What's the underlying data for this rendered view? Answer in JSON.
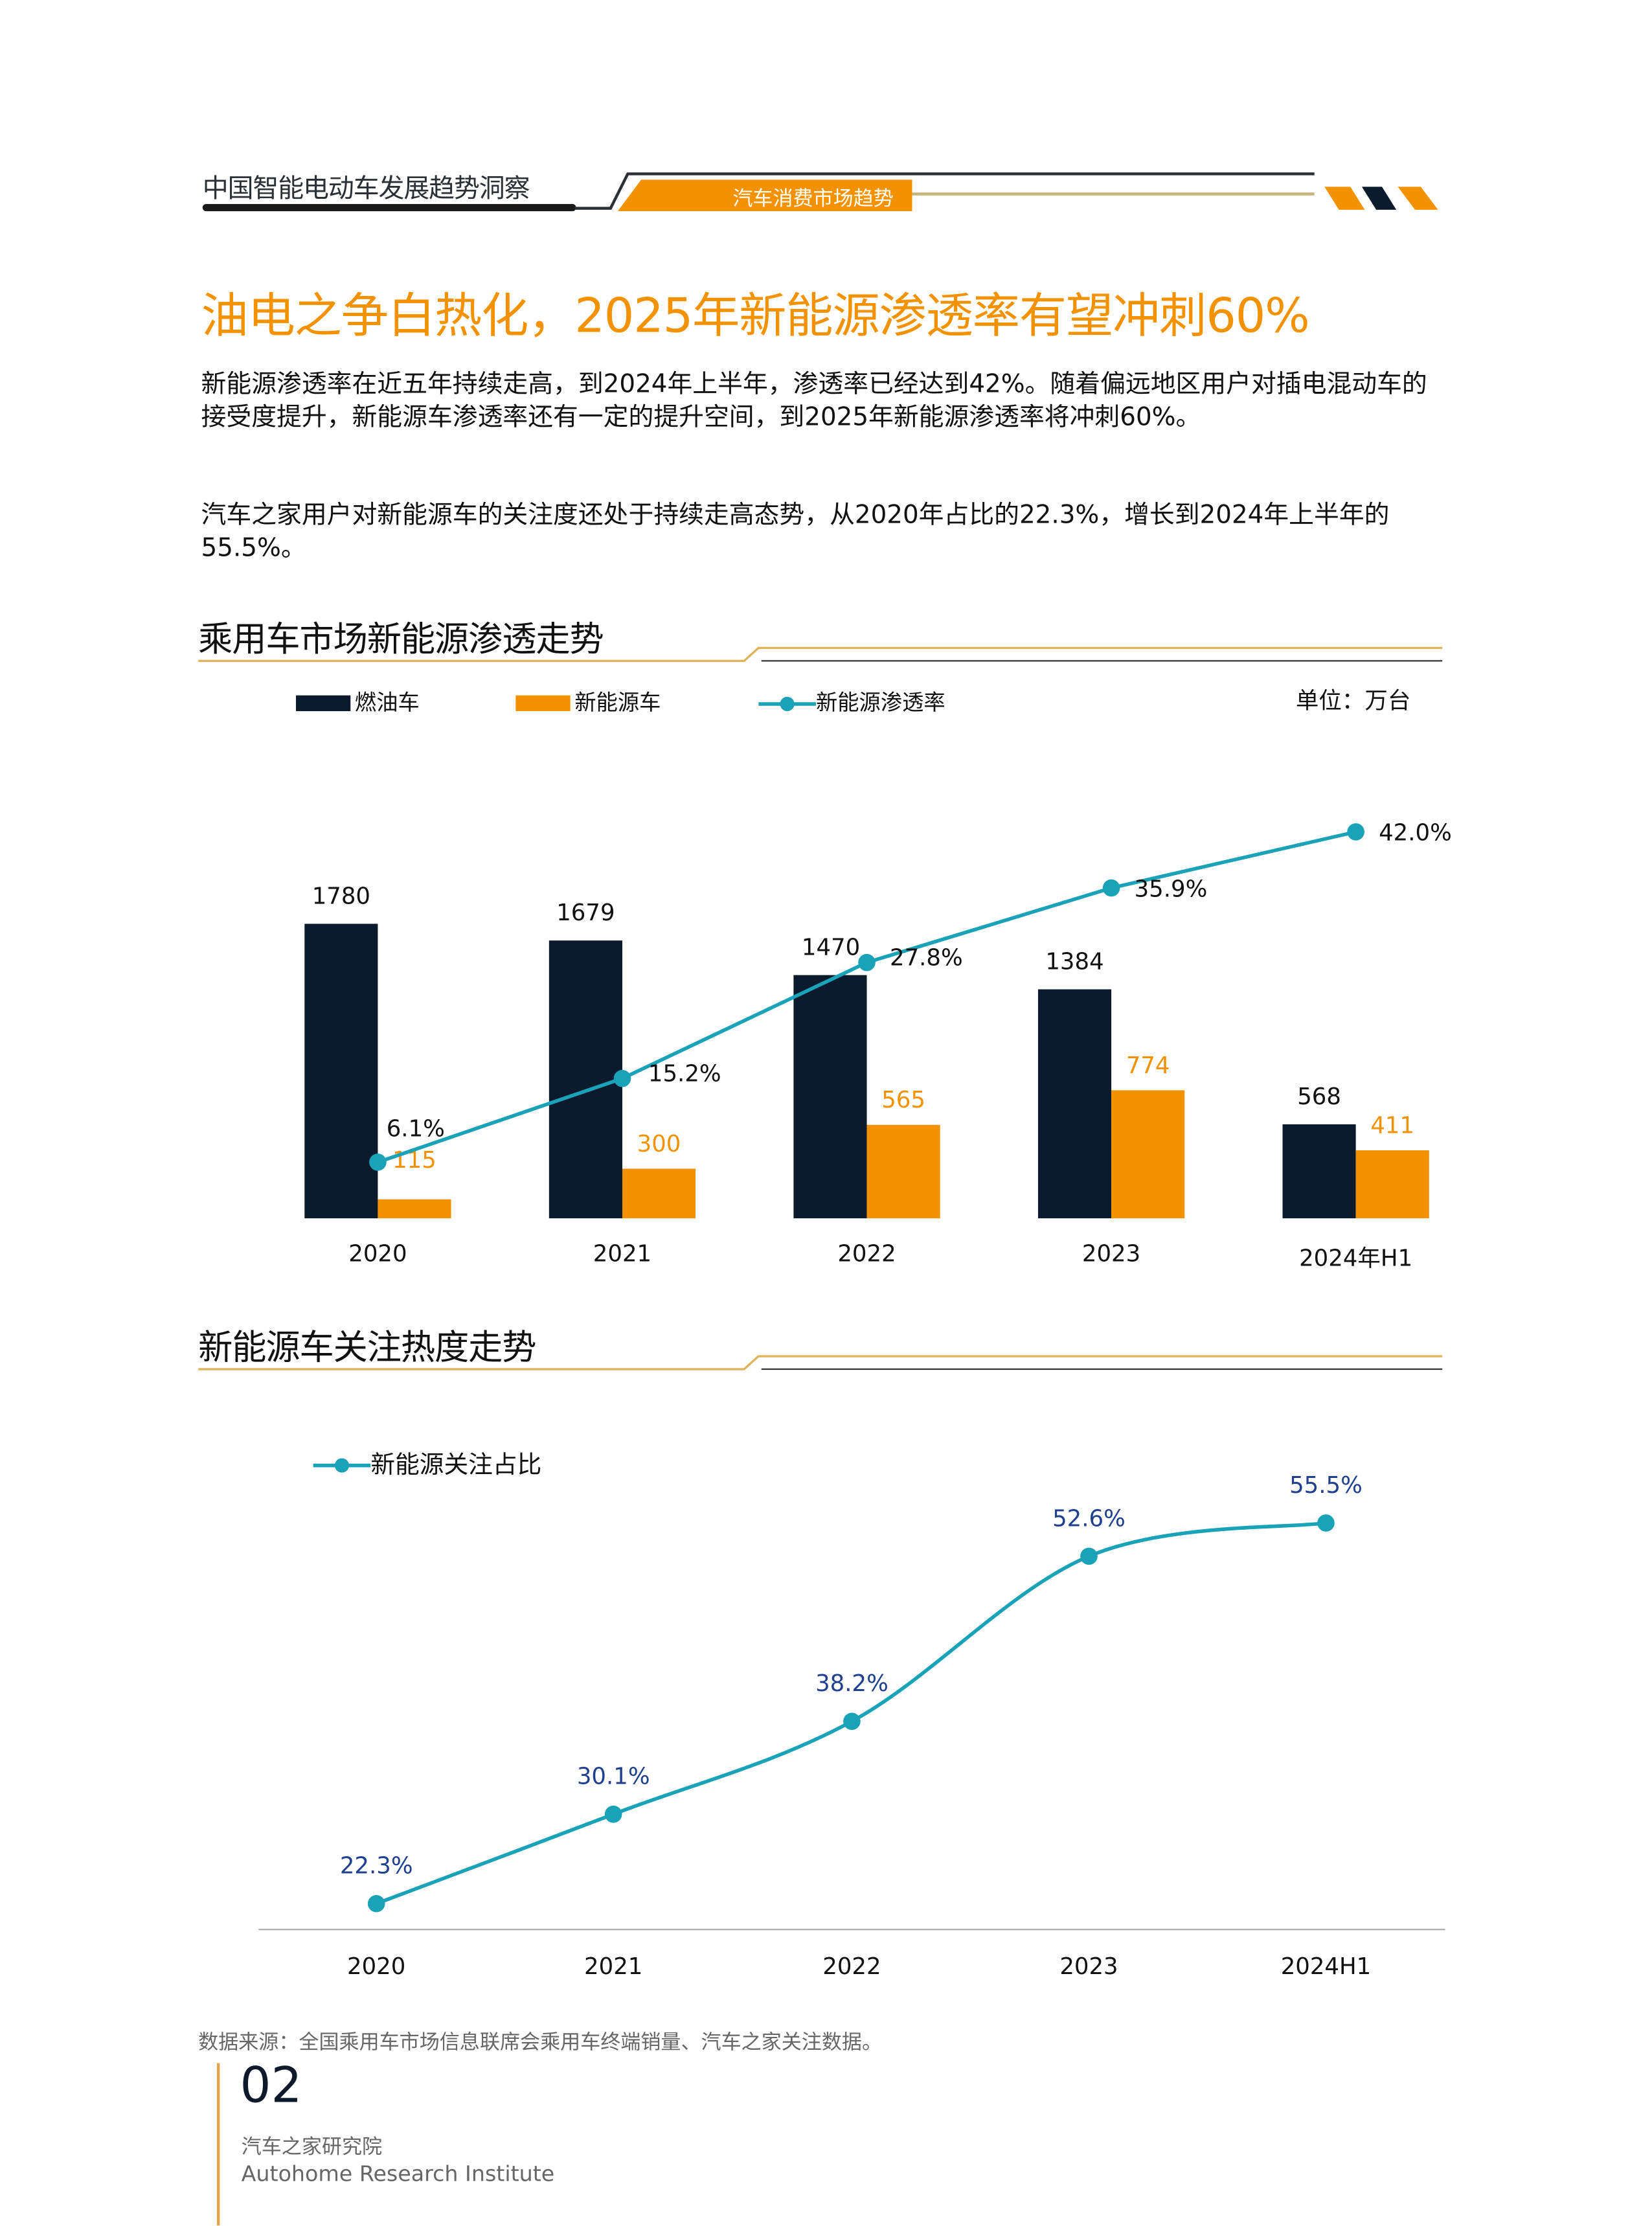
{
  "header": {
    "report_title": "中国智能电动车发展趋势洞察",
    "section_tag": "汽车消费市场趋势"
  },
  "title": "油电之争白热化，2025年新能源渗透率有望冲刺60%",
  "paragraphs": [
    "新能源渗透率在近五年持续走高，到2024年上半年，渗透率已经达到42%。随着偏远地区用户对插电混动车的接受度提升，新能源车渗透率还有一定的提升空间，到2025年新能源渗透率将冲刺60%。",
    "汽车之家用户对新能源车的关注度还处于持续走高态势，从2020年占比的22.3%，增长到2024年上半年的55.5%。"
  ],
  "colors": {
    "accent": "#f39200",
    "dark": "#0b1a2c",
    "teal": "#1aa3b8",
    "blue_label": "#1f3f8f"
  },
  "chart_data": [
    {
      "type": "bar",
      "title": "乘用车市场新能源渗透走势",
      "unit": "单位：万台",
      "categories": [
        "2020",
        "2021",
        "2022",
        "2023",
        "2024年H1"
      ],
      "series": [
        {
          "name": "燃油车",
          "kind": "bar",
          "color": "#0b1a2c",
          "values": [
            1780,
            1679,
            1470,
            1384,
            568
          ]
        },
        {
          "name": "新能源车",
          "kind": "bar",
          "color": "#f39200",
          "values": [
            115,
            300,
            565,
            774,
            411
          ]
        },
        {
          "name": "新能源渗透率",
          "kind": "line",
          "color": "#1aa3b8",
          "values": [
            6.1,
            15.2,
            27.8,
            35.9,
            42.0
          ],
          "labels": [
            "6.1%",
            "15.2%",
            "27.8%",
            "35.9%",
            "42.0%"
          ]
        }
      ],
      "legend": "top"
    },
    {
      "type": "line",
      "title": "新能源车关注热度走势",
      "categories": [
        "2020",
        "2021",
        "2022",
        "2023",
        "2024H1"
      ],
      "series": [
        {
          "name": "新能源关注占比",
          "color": "#1aa3b8",
          "values": [
            22.3,
            30.1,
            38.2,
            52.6,
            55.5
          ],
          "labels": [
            "22.3%",
            "30.1%",
            "38.2%",
            "52.6%",
            "55.5%"
          ]
        }
      ],
      "legend": "top-left"
    }
  ],
  "footer": {
    "source": "数据来源：全国乘用车市场信息联席会乘用车终端销量、汽车之家关注数据。",
    "page_number": "02",
    "institute_cn": "汽车之家研究院",
    "institute_en": "Autohome Research Institute"
  }
}
